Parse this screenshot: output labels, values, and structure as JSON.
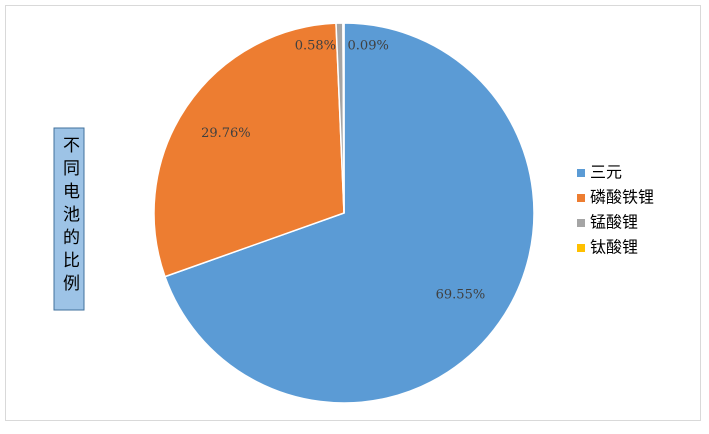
{
  "chart_data": {
    "type": "pie",
    "title": "不同电池的比例",
    "categories": [
      "三元",
      "磷酸铁锂",
      "锰酸锂",
      "钛酸锂"
    ],
    "values": [
      69.55,
      29.76,
      0.58,
      0.09
    ],
    "value_labels": [
      "69.55%",
      "29.76%",
      "0.58%",
      "0.09%"
    ],
    "colors": [
      "#5b9bd5",
      "#ed7d31",
      "#a5a5a5",
      "#ffc000"
    ],
    "legend": "right"
  }
}
